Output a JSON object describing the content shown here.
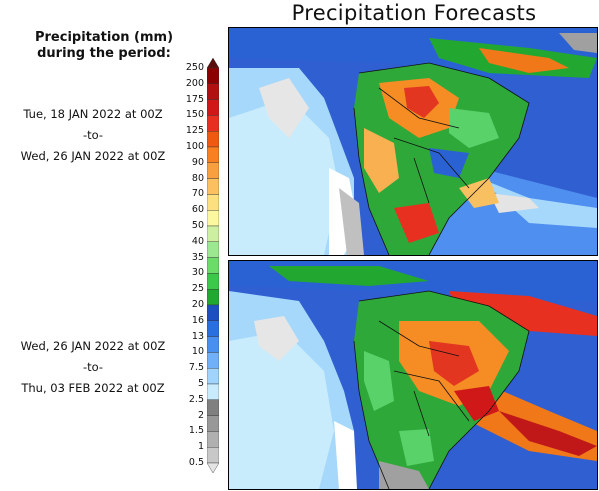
{
  "title": "Precipitation Forecasts",
  "legend": {
    "title_line1": "Precipitation (mm)",
    "title_line2": "during the period:",
    "ticks": [
      "250",
      "200",
      "175",
      "150",
      "125",
      "100",
      "90",
      "80",
      "70",
      "60",
      "50",
      "40",
      "35",
      "30",
      "25",
      "20",
      "16",
      "13",
      "10",
      "7.5",
      "5",
      "2.5",
      "2",
      "1.5",
      "1",
      "0.5"
    ],
    "colors": [
      "#5a0d0d",
      "#8b0000",
      "#b01010",
      "#d01818",
      "#e83020",
      "#f05a10",
      "#f88020",
      "#f8a040",
      "#fcc060",
      "#fce080",
      "#fcf8a0",
      "#ccf0a0",
      "#9ce890",
      "#6cdc68",
      "#3cc848",
      "#20a830",
      "#1c50c0",
      "#2870e0",
      "#4890f0",
      "#70b0f8",
      "#a0d4fc",
      "#c8ecfc",
      "#808080",
      "#989898",
      "#b0b0b0",
      "#c8c8c8",
      "#e4e4e4"
    ]
  },
  "periods": [
    {
      "start": "Tue, 18 JAN 2022 at 00Z",
      "sep": "-to-",
      "end": "Wed, 26 JAN 2022 at 00Z"
    },
    {
      "start": "Wed, 26 JAN 2022 at 00Z",
      "sep": "-to-",
      "end": "Thu, 03 FEB 2022 at 00Z"
    }
  ]
}
